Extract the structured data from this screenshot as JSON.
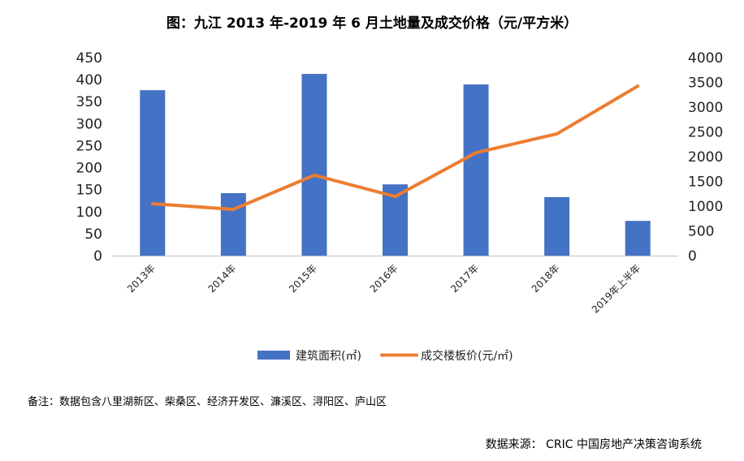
{
  "title": "图：九江 2013 年-2019 年 6 月土地量及成交价格（元/平方米）",
  "note": "备注：数据包含八里湖新区、柴桑区、经济开发区、濂溪区、浔阳区、庐山区",
  "source": "数据来源：   CRIC 中国房地产决策咨询系统",
  "colors": {
    "bar": "#4472C4",
    "line": "#ED7D31"
  },
  "chart_data": {
    "type": "bar+line",
    "categories": [
      "2013年",
      "2014年",
      "2015年",
      "2016年",
      "2017年",
      "2018年",
      "2019年上半年"
    ],
    "series": [
      {
        "name": "建筑面积(㎡)",
        "type": "bar",
        "axis": "left",
        "values": [
          376,
          142,
          413,
          162,
          389,
          133,
          79
        ]
      },
      {
        "name": "成交楼板价(元/㎡)",
        "type": "line",
        "axis": "right",
        "values": [
          1050,
          935,
          1625,
          1195,
          2080,
          2460,
          3425
        ]
      }
    ],
    "left_axis": {
      "ylim": [
        0,
        450
      ],
      "ticks": [
        0,
        50,
        100,
        150,
        200,
        250,
        300,
        350,
        400,
        450
      ]
    },
    "right_axis": {
      "ylim": [
        0,
        4000
      ],
      "ticks": [
        0,
        500,
        1000,
        1500,
        2000,
        2500,
        3000,
        3500,
        4000
      ]
    },
    "grid": false,
    "legend": "bottom"
  }
}
